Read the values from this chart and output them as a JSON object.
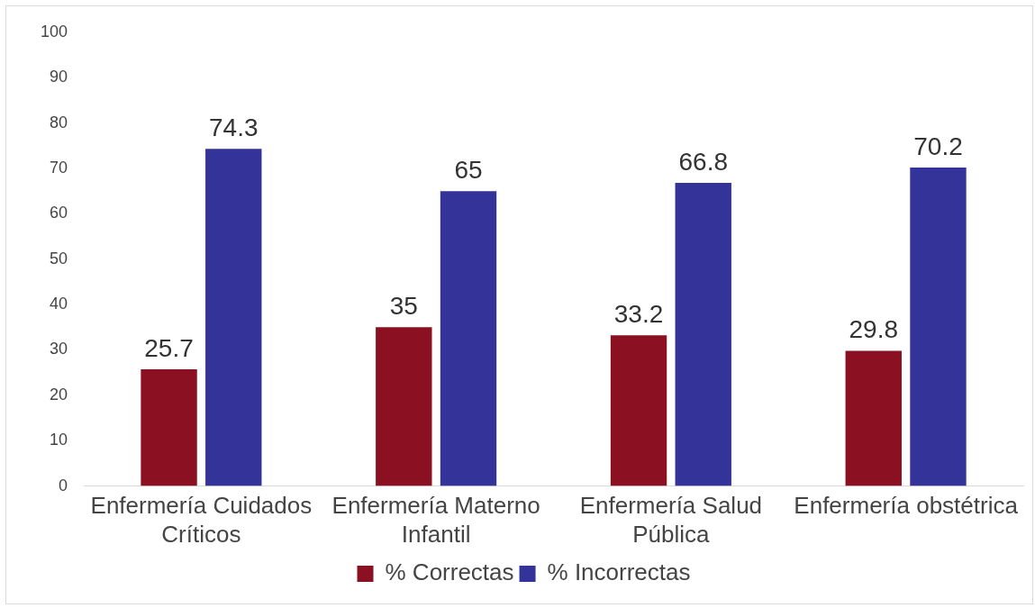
{
  "chart_data": {
    "type": "bar",
    "categories": [
      "Enfermería Cuidados Críticos",
      "Enfermería Materno Infantil",
      "Enfermería Salud Pública",
      "Enfermería obstétrica"
    ],
    "series": [
      {
        "name": "% Correctas",
        "color": "#8b1022",
        "values": [
          25.7,
          35,
          33.2,
          29.8
        ]
      },
      {
        "name": "% Incorrectas",
        "color": "#343399",
        "values": [
          74.3,
          65,
          66.8,
          70.2
        ]
      }
    ],
    "ylim": [
      0,
      100
    ],
    "yticks": [
      0,
      10,
      20,
      30,
      40,
      50,
      60,
      70,
      80,
      90,
      100
    ],
    "grid": false,
    "legend": "bottom",
    "data_labels": true
  }
}
